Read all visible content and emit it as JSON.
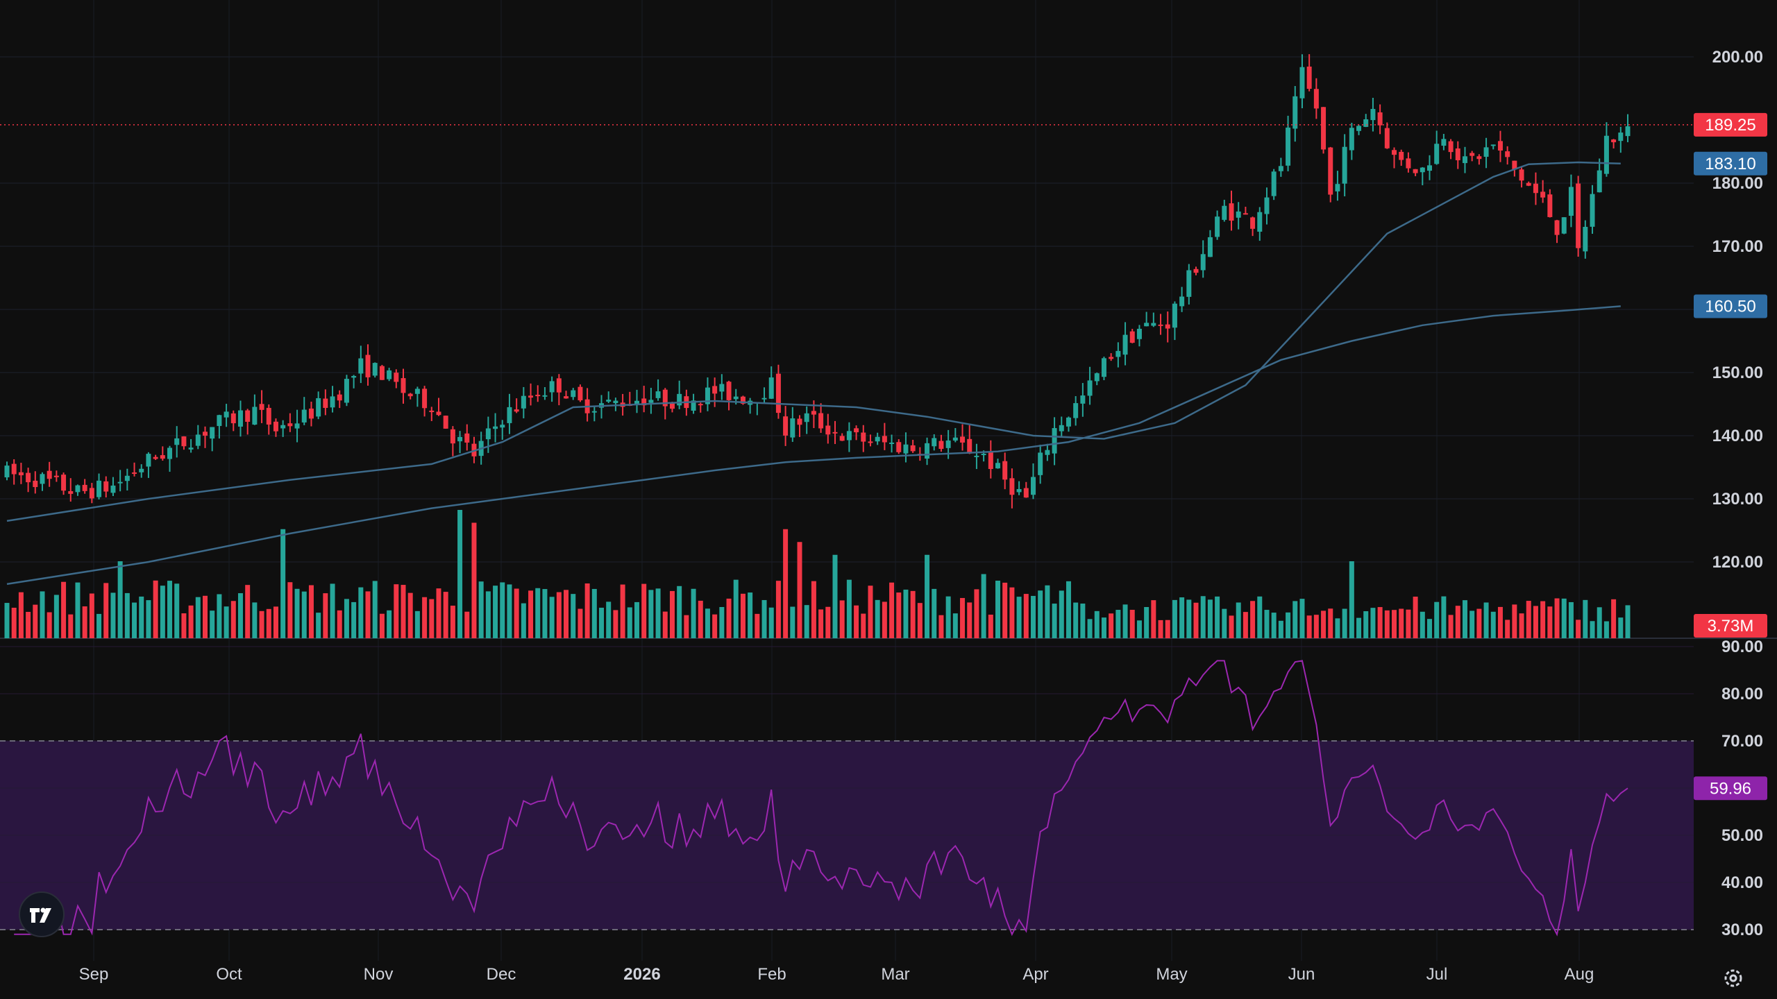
{
  "chart_data": [
    {
      "type": "candlestick",
      "ylim": [
        112,
        208
      ],
      "y_ticks": [
        "120.00",
        "130.00",
        "140.00",
        "150.00",
        "160.00",
        "170.00",
        "180.00",
        "200.00"
      ],
      "grid": true,
      "x_axis_labels": [
        {
          "label": "Sep",
          "bold": false
        },
        {
          "label": "Oct",
          "bold": false
        },
        {
          "label": "Nov",
          "bold": false
        },
        {
          "label": "Dec",
          "bold": false
        },
        {
          "label": "2026",
          "bold": true
        },
        {
          "label": "Feb",
          "bold": false
        },
        {
          "label": "Mar",
          "bold": false
        },
        {
          "label": "Apr",
          "bold": false
        },
        {
          "label": "May",
          "bold": false
        },
        {
          "label": "Jun",
          "bold": false
        },
        {
          "label": "Jul",
          "bold": false
        },
        {
          "label": "Aug",
          "bold": false
        }
      ],
      "last_price": {
        "value": 189.25,
        "label": "189.25",
        "color": "#f23645"
      },
      "series": [
        {
          "kind": "ma",
          "label": "183.10",
          "value": 183.1,
          "color": "#2962ff",
          "path": [
            [
              0,
              126.5
            ],
            [
              20,
              130
            ],
            [
              40,
              133
            ],
            [
              60,
              135.5
            ],
            [
              70,
              139
            ],
            [
              80,
              144.5
            ],
            [
              90,
              145
            ],
            [
              100,
              145.5
            ],
            [
              110,
              145
            ],
            [
              120,
              144.5
            ],
            [
              130,
              143
            ],
            [
              145,
              140
            ],
            [
              155,
              139.5
            ],
            [
              165,
              142
            ],
            [
              175,
              148
            ],
            [
              185,
              160
            ],
            [
              195,
              172
            ],
            [
              205,
              178
            ],
            [
              210,
              181
            ],
            [
              215,
              183
            ],
            [
              222,
              183.3
            ],
            [
              228,
              183.1
            ]
          ]
        },
        {
          "kind": "ma",
          "label": "160.50",
          "value": 160.5,
          "color": "#2962ff",
          "path": [
            [
              0,
              116.5
            ],
            [
              20,
              120
            ],
            [
              40,
              124.5
            ],
            [
              60,
              128.5
            ],
            [
              70,
              130
            ],
            [
              80,
              131.5
            ],
            [
              90,
              133
            ],
            [
              100,
              134.5
            ],
            [
              110,
              135.8
            ],
            [
              120,
              136.5
            ],
            [
              130,
              137
            ],
            [
              140,
              137.5
            ],
            [
              150,
              139
            ],
            [
              160,
              142
            ],
            [
              170,
              147
            ],
            [
              180,
              152
            ],
            [
              190,
              155
            ],
            [
              200,
              157.5
            ],
            [
              210,
              159
            ],
            [
              220,
              159.8
            ],
            [
              228,
              160.5
            ]
          ]
        }
      ],
      "ohlc_anchors": [
        [
          0,
          134
        ],
        [
          5,
          133
        ],
        [
          10,
          131
        ],
        [
          15,
          132
        ],
        [
          20,
          136
        ],
        [
          25,
          139
        ],
        [
          30,
          142
        ],
        [
          35,
          144
        ],
        [
          38,
          141
        ],
        [
          42,
          143
        ],
        [
          47,
          147
        ],
        [
          50,
          151
        ],
        [
          53,
          150
        ],
        [
          56,
          147
        ],
        [
          60,
          145
        ],
        [
          63,
          140
        ],
        [
          66,
          137
        ],
        [
          70,
          143
        ],
        [
          75,
          147
        ],
        [
          78,
          148
        ],
        [
          81,
          145
        ],
        [
          85,
          145
        ],
        [
          90,
          146
        ],
        [
          95,
          145.5
        ],
        [
          100,
          147
        ],
        [
          105,
          146
        ],
        [
          108,
          148
        ],
        [
          110,
          141
        ],
        [
          113,
          143
        ],
        [
          118,
          140
        ],
        [
          123,
          139
        ],
        [
          128,
          138
        ],
        [
          133,
          139
        ],
        [
          138,
          137
        ],
        [
          141,
          133
        ],
        [
          144,
          130
        ],
        [
          146,
          136
        ],
        [
          148,
          141
        ],
        [
          152,
          146
        ],
        [
          156,
          153
        ],
        [
          160,
          157
        ],
        [
          164,
          158
        ],
        [
          168,
          167
        ],
        [
          172,
          176
        ],
        [
          176,
          174
        ],
        [
          180,
          183
        ],
        [
          183,
          197
        ],
        [
          185,
          192
        ],
        [
          187,
          178
        ],
        [
          190,
          188
        ],
        [
          193,
          192
        ],
        [
          196,
          184
        ],
        [
          200,
          182
        ],
        [
          203,
          188
        ],
        [
          206,
          183
        ],
        [
          210,
          186
        ],
        [
          213,
          182
        ],
        [
          217,
          177
        ],
        [
          219,
          173
        ],
        [
          221,
          178
        ],
        [
          222,
          169
        ],
        [
          224,
          178
        ],
        [
          226,
          187
        ],
        [
          229,
          188
        ]
      ],
      "rsi": {
        "ylim": [
          26,
          92
        ],
        "y_ticks": [
          "30.00",
          "40.00",
          "50.00",
          "60.00",
          "70.00",
          "80.00",
          "90.00"
        ],
        "bands": [
          30,
          70
        ],
        "value": 59.96,
        "label": "59.96",
        "color": "#9c27b0",
        "band_fill": "#2a1640"
      },
      "volume": {
        "label": "3.73M",
        "up_color": "#26a69a",
        "down_color": "#f23645",
        "spikes": [
          [
            16,
            0.6
          ],
          [
            39,
            0.85
          ],
          [
            64,
            1.0
          ],
          [
            66,
            0.9
          ],
          [
            110,
            0.85
          ],
          [
            112,
            0.75
          ],
          [
            117,
            0.65
          ],
          [
            130,
            0.65
          ],
          [
            138,
            0.5
          ],
          [
            190,
            0.6
          ]
        ]
      }
    }
  ],
  "chrome": {
    "logo_icon": "tradingview-logo-icon",
    "settings_icon": "gear-icon"
  }
}
